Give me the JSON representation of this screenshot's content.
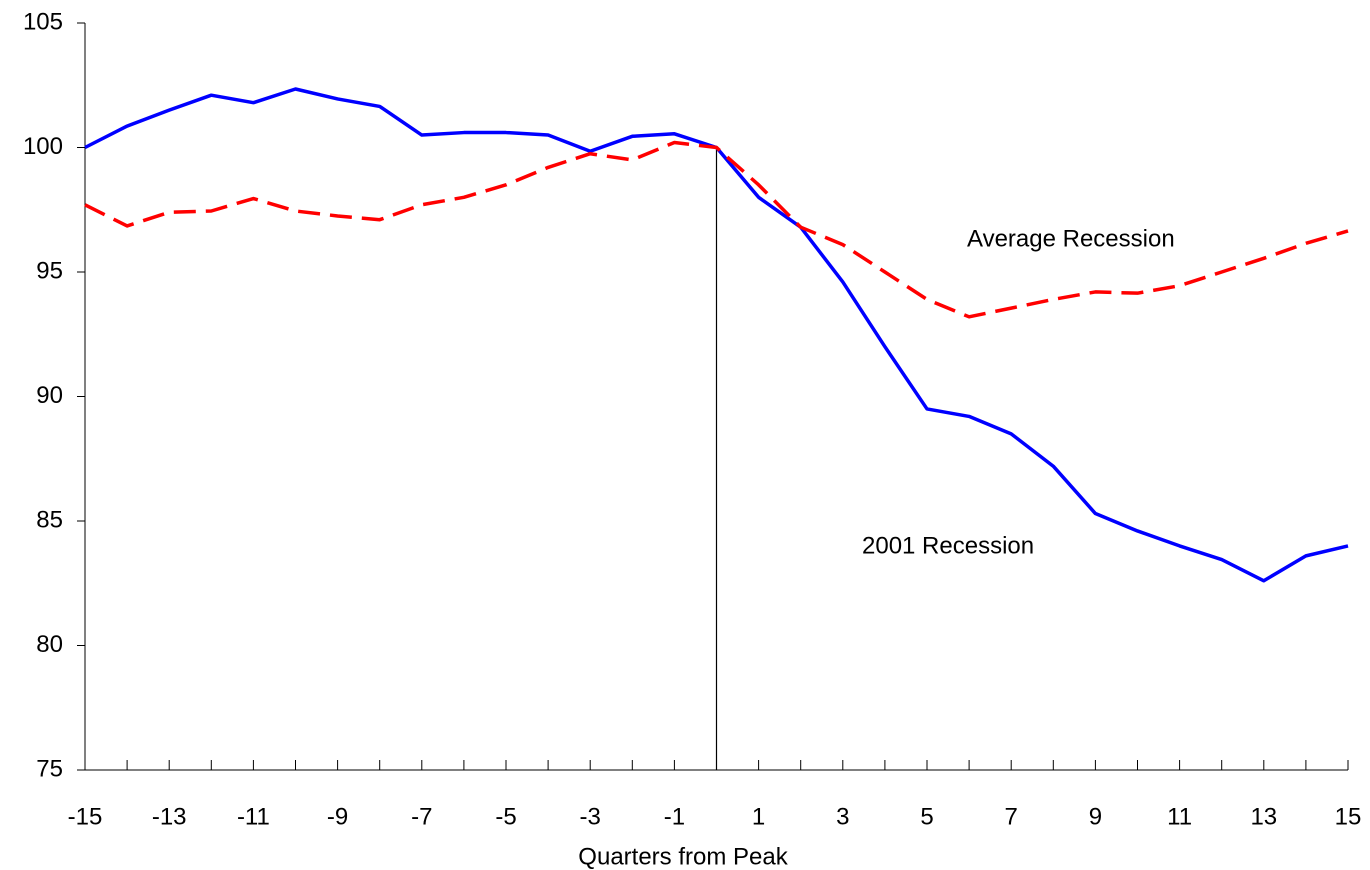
{
  "chart_data": {
    "type": "line",
    "xlabel": "Quarters from Peak",
    "x": [
      -15,
      -14,
      -13,
      -12,
      -11,
      -10,
      -9,
      -8,
      -7,
      -6,
      -5,
      -4,
      -3,
      -2,
      -1,
      0,
      1,
      2,
      3,
      4,
      5,
      6,
      7,
      8,
      9,
      10,
      11,
      12,
      13,
      14,
      15
    ],
    "series": [
      {
        "name": "2001 Recession",
        "color": "#0000ff",
        "dash": "solid",
        "values": [
          100.0,
          100.86,
          101.5,
          102.1,
          101.8,
          102.35,
          101.95,
          101.65,
          100.5,
          100.6,
          100.6,
          100.5,
          99.85,
          100.45,
          100.55,
          100.0,
          98.0,
          96.8,
          94.6,
          92.0,
          89.5,
          89.2,
          88.5,
          87.2,
          85.3,
          84.6,
          84.0,
          83.45,
          82.6,
          83.6,
          84.0
        ]
      },
      {
        "name": "Average Recession",
        "color": "#ff0000",
        "dash": "dashed",
        "values": [
          97.7,
          96.85,
          97.4,
          97.45,
          97.95,
          97.45,
          97.25,
          97.1,
          97.7,
          98.0,
          98.5,
          99.2,
          99.75,
          99.5,
          100.2,
          100.0,
          98.5,
          96.8,
          96.1,
          95.0,
          93.9,
          93.2,
          93.55,
          93.9,
          94.2,
          94.15,
          94.45,
          95.0,
          95.55,
          96.15,
          96.65
        ]
      }
    ],
    "xlim": [
      -15,
      15
    ],
    "xticks": [
      -15,
      -13,
      -11,
      -9,
      -7,
      -5,
      -3,
      -1,
      1,
      3,
      5,
      7,
      9,
      11,
      13,
      15
    ],
    "ylim": [
      75,
      105
    ],
    "yticks": [
      75,
      80,
      85,
      90,
      95,
      100,
      105
    ],
    "vline": 0,
    "grid": false
  }
}
